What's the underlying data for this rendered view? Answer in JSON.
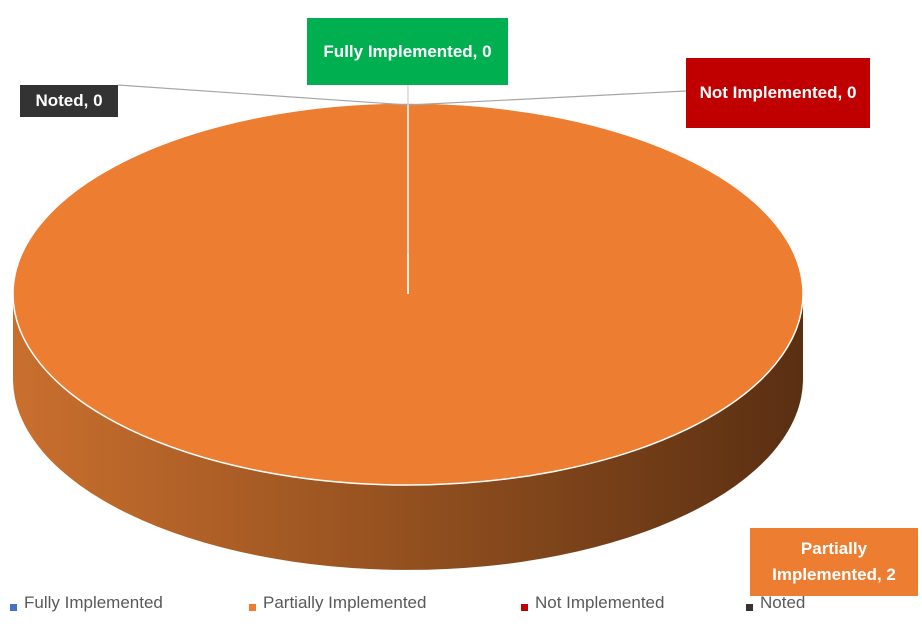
{
  "chart_data": {
    "type": "pie",
    "categories": [
      "Fully Implemented",
      "Partially Implemented",
      "Not Implemented",
      "Noted"
    ],
    "values": [
      0,
      2,
      0,
      0
    ],
    "value_labels": [
      "Fully Implemented, 0",
      "Partially Implemented, 2",
      "Not Implemented, 0",
      "Noted, 0"
    ],
    "colors": [
      "#4472c4",
      "#ed7d31",
      "#c00000",
      "#333333"
    ],
    "label_colors": [
      "#00b050",
      "#ed7d31",
      "#c00000",
      "#333333"
    ],
    "legend": "bottom",
    "three_d": true
  }
}
